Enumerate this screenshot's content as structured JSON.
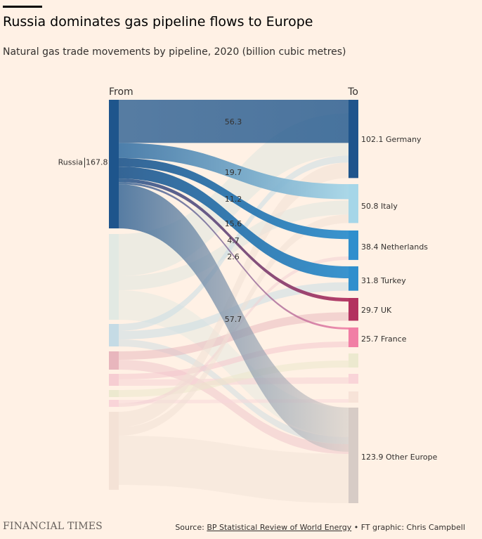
{
  "header": {
    "title": "Russia dominates gas pipeline flows to Europe",
    "subtitle": "Natural gas trade movements by pipeline, 2020 (billion cubic metres)"
  },
  "footer": {
    "brand": "FINANCIAL TIMES",
    "source_prefix": "Source: ",
    "source_link": "BP Statistical Review of World Energy",
    "source_suffix": " • FT graphic: Chris Campbell"
  },
  "chart_data": {
    "type": "sankey",
    "column_labels": {
      "from": "From",
      "to": "To"
    },
    "units": "billion cubic metres",
    "sources": [
      {
        "name": "Russia",
        "value": 167.8,
        "label_left": "Russia",
        "label_right": "167.8",
        "color": "#1e558c"
      },
      {
        "name": "",
        "color": "#e2e9e3"
      },
      {
        "name": "",
        "color": "#c5dbe5"
      },
      {
        "name": "",
        "color": "#e8b6bd"
      },
      {
        "name": "",
        "color": "#f6cdd2"
      },
      {
        "name": "",
        "color": "#ece9cf"
      },
      {
        "name": "",
        "color": "#f9d4d8"
      },
      {
        "name": "",
        "color": "#f4e2d6"
      }
    ],
    "targets": [
      {
        "name": "Germany",
        "value": 102.1,
        "label": "102.1 Germany",
        "color": "#1e558c"
      },
      {
        "name": "Italy",
        "value": 50.8,
        "label": "50.8 Italy",
        "color": "#a6d6e8"
      },
      {
        "name": "Netherlands",
        "value": 38.4,
        "label": "38.4 Netherlands",
        "color": "#2f8fcd"
      },
      {
        "name": "Turkey",
        "value": 31.8,
        "label": "31.8 Turkey",
        "color": "#2f8fcd"
      },
      {
        "name": "UK",
        "value": 29.7,
        "label": "29.7 UK",
        "color": "#b3325f"
      },
      {
        "name": "France",
        "value": 25.7,
        "label": "25.7 France",
        "color": "#f17fa5"
      },
      {
        "name": "",
        "color": "#ece9cf"
      },
      {
        "name": "",
        "color": "#f9d4d8"
      },
      {
        "name": "",
        "color": "#f7e3d8"
      },
      {
        "name": "Other Europe",
        "value": 123.9,
        "label": "123.9 Other Europe",
        "color": "#d7ccc6"
      }
    ],
    "russia_flows": [
      {
        "to": "Germany",
        "value": 56.3,
        "label": "56.3"
      },
      {
        "to": "Italy",
        "value": 19.7,
        "label": "19.7"
      },
      {
        "to": "Netherlands",
        "value": 11.2,
        "label": "11.2"
      },
      {
        "to": "Turkey",
        "value": 15.6,
        "label": "15.6"
      },
      {
        "to": "UK",
        "value": 4.7,
        "label": "4.7"
      },
      {
        "to": "France",
        "value": 2.6,
        "label": "2.6"
      },
      {
        "to": "Other Europe",
        "value": 57.7,
        "label": "57.7"
      }
    ]
  }
}
